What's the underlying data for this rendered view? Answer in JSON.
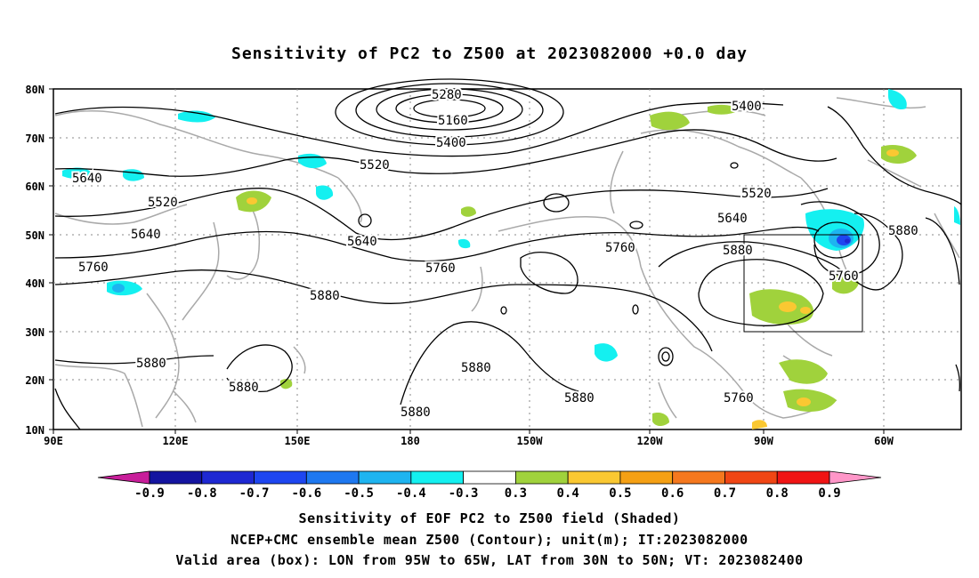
{
  "title": "Sensitivity of PC2 to Z500 at 2023082000 +0.0 day",
  "axes": {
    "x_ticks": [
      "90E",
      "120E",
      "150E",
      "180",
      "150W",
      "120W",
      "90W",
      "60W"
    ],
    "y_ticks": [
      "80N",
      "70N",
      "60N",
      "50N",
      "40N",
      "30N",
      "20N",
      "10N"
    ]
  },
  "contour_labels": [
    "5280",
    "5160",
    "5400",
    "5520",
    "5640",
    "5520",
    "5640",
    "5760",
    "5640",
    "5760",
    "5880",
    "5880",
    "5880",
    "5880",
    "5880",
    "5880",
    "5760",
    "5400",
    "5520",
    "5640",
    "5760",
    "5880",
    "5880",
    "5760"
  ],
  "colorbar": {
    "labels": [
      "-0.9",
      "-0.8",
      "-0.7",
      "-0.6",
      "-0.5",
      "-0.4",
      "-0.3",
      "0.3",
      "0.4",
      "0.5",
      "0.6",
      "0.7",
      "0.8",
      "0.9"
    ],
    "colors": [
      "#c81e9a",
      "#1414a0",
      "#1e28d2",
      "#1e46f0",
      "#1e78f0",
      "#1eb4f0",
      "#14f0f0",
      "#ffffff",
      "#a0d23c",
      "#fac832",
      "#f5a014",
      "#f5781e",
      "#f04614",
      "#f01414",
      "#ff96c8"
    ]
  },
  "valid_box": {
    "lon_from": "95W",
    "lon_to": "65W",
    "lat_from": "30N",
    "lat_to": "50N"
  },
  "captions": {
    "line1": "Sensitivity of EOF PC2 to Z500 field (Shaded)",
    "line2": "NCEP+CMC ensemble mean Z500 (Contour); unit(m); IT:2023082000",
    "line3": "Valid area (box): LON from 95W to 65W, LAT from 30N to 50N; VT: 2023082400"
  }
}
